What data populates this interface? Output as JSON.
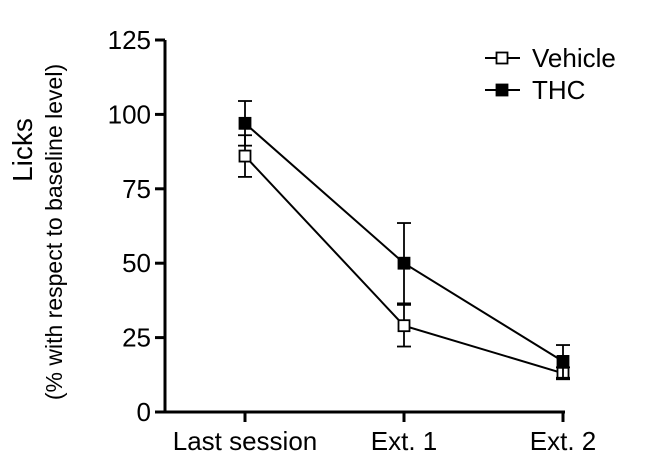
{
  "chart_data": {
    "type": "line",
    "categories": [
      "Last session",
      "Ext. 1",
      "Ext. 2"
    ],
    "ylabel": "Licks",
    "ylabel_sub": "(% with respect to baseline level)",
    "xlabel": "",
    "ylim": [
      0,
      125
    ],
    "yticks": [
      0,
      25,
      50,
      75,
      100,
      125
    ],
    "grid": false,
    "legend_position": "top-right",
    "series": [
      {
        "name": "Vehicle",
        "marker": "open-square",
        "color": "#000000",
        "values": [
          86,
          29,
          13
        ],
        "errors": [
          7,
          7,
          2
        ]
      },
      {
        "name": "THC",
        "marker": "filled-square",
        "color": "#000000",
        "values": [
          97,
          50,
          17
        ],
        "errors": [
          7.5,
          13.5,
          5.5
        ]
      }
    ]
  }
}
